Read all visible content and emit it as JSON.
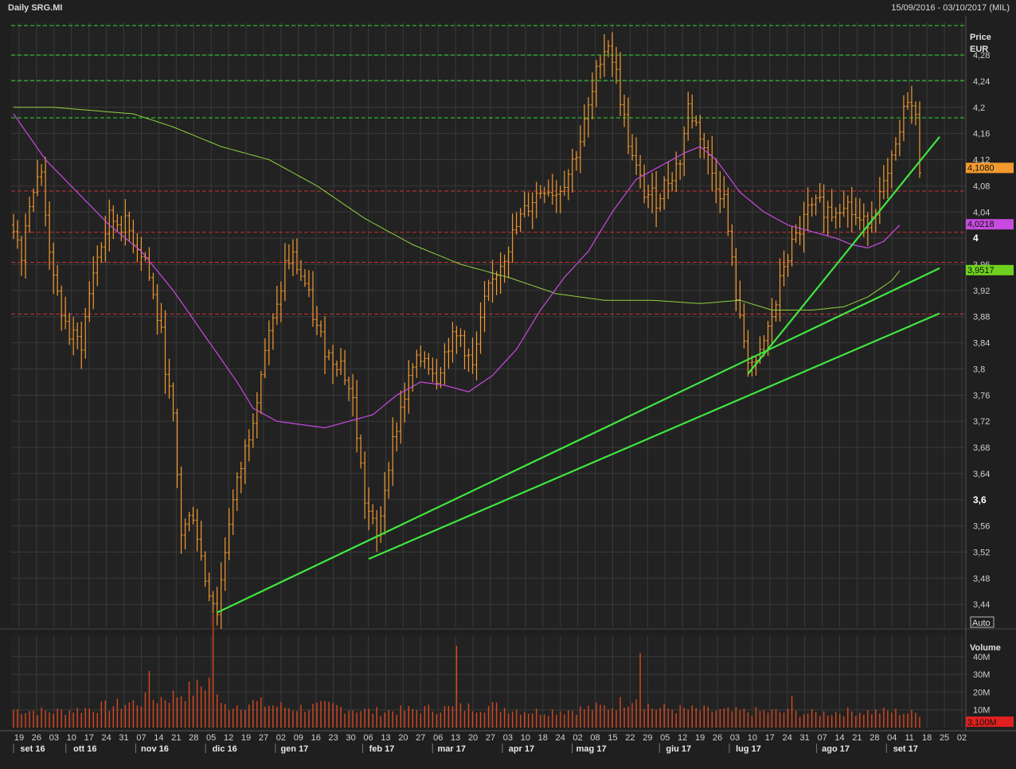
{
  "header": {
    "title": "Daily SRG.MI",
    "range": "15/09/2016 - 03/10/2017 (MIL)"
  },
  "colors": {
    "background": "#1f1f1f",
    "panel": "#222222",
    "grid": "#3a3a3a",
    "bars": "#f29a2e",
    "ma_short": "#c84be0",
    "ma_long": "#8fd13f",
    "trend": "#3fe63f",
    "green_dashed": "#2fd82f",
    "red_dashed": "#c83232",
    "volume": "#d9481e"
  },
  "chart_data": {
    "type": "ohlc",
    "price_axis": {
      "label_line1": "Price",
      "label_line2": "EUR",
      "ylim": [
        3.405,
        4.33
      ],
      "ticks": [
        "3,44",
        "3,48",
        "3,52",
        "3,56",
        "3,6",
        "3,64",
        "3,68",
        "3,72",
        "3,76",
        "3,8",
        "3,84",
        "3,88",
        "3,92",
        "3,96",
        "4",
        "4,04",
        "4,08",
        "4,12",
        "4,16",
        "4,2",
        "4,24",
        "4,28"
      ],
      "tick_values": [
        3.44,
        3.48,
        3.52,
        3.56,
        3.6,
        3.64,
        3.68,
        3.72,
        3.76,
        3.8,
        3.84,
        3.88,
        3.92,
        3.96,
        4.0,
        4.04,
        4.08,
        4.12,
        4.16,
        4.2,
        4.24,
        4.28
      ],
      "bold_ticks": [
        "3,6",
        "4"
      ],
      "auto_label": "Auto"
    },
    "volume_axis": {
      "label": "Volume",
      "ylim": [
        0,
        52
      ],
      "ticks": [
        "10M",
        "20M",
        "30M",
        "40M"
      ],
      "tick_values": [
        10,
        20,
        30,
        40
      ]
    },
    "x_day_labels": [
      "19",
      "26",
      "03",
      "10",
      "17",
      "24",
      "31",
      "07",
      "14",
      "21",
      "28",
      "05",
      "12",
      "19",
      "27",
      "02",
      "09",
      "16",
      "23",
      "30",
      "06",
      "13",
      "20",
      "27",
      "06",
      "13",
      "20",
      "27",
      "03",
      "10",
      "18",
      "24",
      "02",
      "08",
      "15",
      "22",
      "29",
      "05",
      "12",
      "19",
      "26",
      "03",
      "10",
      "17",
      "24",
      "31",
      "07",
      "14",
      "21",
      "28",
      "04",
      "11",
      "18",
      "25",
      "02"
    ],
    "x_month_labels": [
      {
        "label": "set 16",
        "day_index": 0
      },
      {
        "label": "ott 16",
        "day_index": 3
      },
      {
        "label": "nov 16",
        "day_index": 7
      },
      {
        "label": "dic 16",
        "day_index": 11
      },
      {
        "label": "gen 17",
        "day_index": 15
      },
      {
        "label": "feb 17",
        "day_index": 20
      },
      {
        "label": "mar 17",
        "day_index": 24
      },
      {
        "label": "apr 17",
        "day_index": 28
      },
      {
        "label": "mag 17",
        "day_index": 32
      },
      {
        "label": "giu 17",
        "day_index": 37
      },
      {
        "label": "lug 17",
        "day_index": 41
      },
      {
        "label": "ago 17",
        "day_index": 46
      },
      {
        "label": "set 17",
        "day_index": 50
      }
    ],
    "price_anchors": [
      [
        0,
        4.02
      ],
      [
        2,
        3.98
      ],
      [
        4,
        4.06
      ],
      [
        7,
        4.1
      ],
      [
        10,
        3.93
      ],
      [
        14,
        3.85
      ],
      [
        17,
        3.84
      ],
      [
        20,
        3.95
      ],
      [
        24,
        4.03
      ],
      [
        28,
        4.02
      ],
      [
        33,
        3.97
      ],
      [
        37,
        3.85
      ],
      [
        40,
        3.72
      ],
      [
        42,
        3.55
      ],
      [
        45,
        3.58
      ],
      [
        48,
        3.48
      ],
      [
        51,
        3.43
      ],
      [
        54,
        3.57
      ],
      [
        57,
        3.65
      ],
      [
        60,
        3.73
      ],
      [
        63,
        3.83
      ],
      [
        66,
        3.89
      ],
      [
        68,
        3.96
      ],
      [
        70,
        3.97
      ],
      [
        73,
        3.93
      ],
      [
        76,
        3.86
      ],
      [
        79,
        3.82
      ],
      [
        82,
        3.81
      ],
      [
        85,
        3.75
      ],
      [
        88,
        3.6
      ],
      [
        91,
        3.54
      ],
      [
        94,
        3.66
      ],
      [
        97,
        3.74
      ],
      [
        100,
        3.8
      ],
      [
        103,
        3.82
      ],
      [
        106,
        3.79
      ],
      [
        109,
        3.84
      ],
      [
        112,
        3.85
      ],
      [
        115,
        3.8
      ],
      [
        118,
        3.9
      ],
      [
        121,
        3.95
      ],
      [
        124,
        3.99
      ],
      [
        127,
        4.03
      ],
      [
        130,
        4.06
      ],
      [
        133,
        4.08
      ],
      [
        136,
        4.07
      ],
      [
        139,
        4.1
      ],
      [
        142,
        4.15
      ],
      [
        145,
        4.22
      ],
      [
        147,
        4.28
      ],
      [
        149,
        4.3
      ],
      [
        151,
        4.25
      ],
      [
        153,
        4.18
      ],
      [
        155,
        4.12
      ],
      [
        158,
        4.07
      ],
      [
        161,
        4.06
      ],
      [
        164,
        4.09
      ],
      [
        167,
        4.12
      ],
      [
        169,
        4.2
      ],
      [
        172,
        4.16
      ],
      [
        175,
        4.1
      ],
      [
        178,
        4.06
      ],
      [
        180,
        3.96
      ],
      [
        182,
        3.87
      ],
      [
        184,
        3.82
      ],
      [
        186,
        3.8
      ],
      [
        188,
        3.84
      ],
      [
        191,
        3.9
      ],
      [
        193,
        3.96
      ],
      [
        196,
        4.0
      ],
      [
        199,
        4.04
      ],
      [
        202,
        4.05
      ],
      [
        205,
        4.04
      ],
      [
        208,
        4.06
      ],
      [
        211,
        4.03
      ],
      [
        213,
        4.02
      ],
      [
        216,
        4.05
      ],
      [
        219,
        4.09
      ],
      [
        222,
        4.16
      ],
      [
        224,
        4.22
      ],
      [
        226,
        4.18
      ],
      [
        227,
        4.11
      ]
    ],
    "bars_count": 228,
    "ma_short_anchors": [
      [
        0,
        4.19
      ],
      [
        8,
        4.12
      ],
      [
        16,
        4.07
      ],
      [
        24,
        4.02
      ],
      [
        32,
        3.98
      ],
      [
        40,
        3.92
      ],
      [
        48,
        3.85
      ],
      [
        56,
        3.78
      ],
      [
        60,
        3.74
      ],
      [
        66,
        3.72
      ],
      [
        72,
        3.715
      ],
      [
        78,
        3.71
      ],
      [
        84,
        3.72
      ],
      [
        90,
        3.73
      ],
      [
        96,
        3.76
      ],
      [
        102,
        3.78
      ],
      [
        108,
        3.775
      ],
      [
        114,
        3.765
      ],
      [
        120,
        3.79
      ],
      [
        126,
        3.83
      ],
      [
        132,
        3.89
      ],
      [
        138,
        3.94
      ],
      [
        144,
        3.98
      ],
      [
        150,
        4.04
      ],
      [
        156,
        4.09
      ],
      [
        162,
        4.11
      ],
      [
        168,
        4.13
      ],
      [
        172,
        4.14
      ],
      [
        176,
        4.12
      ],
      [
        182,
        4.07
      ],
      [
        188,
        4.04
      ],
      [
        194,
        4.02
      ],
      [
        200,
        4.01
      ],
      [
        206,
        4.0
      ],
      [
        210,
        3.99
      ],
      [
        214,
        3.985
      ],
      [
        218,
        3.995
      ],
      [
        222,
        4.02
      ]
    ],
    "ma_long_anchors": [
      [
        0,
        4.2
      ],
      [
        10,
        4.2
      ],
      [
        20,
        4.195
      ],
      [
        30,
        4.19
      ],
      [
        40,
        4.17
      ],
      [
        52,
        4.14
      ],
      [
        64,
        4.12
      ],
      [
        76,
        4.08
      ],
      [
        88,
        4.03
      ],
      [
        100,
        3.99
      ],
      [
        112,
        3.96
      ],
      [
        124,
        3.94
      ],
      [
        136,
        3.915
      ],
      [
        148,
        3.905
      ],
      [
        160,
        3.905
      ],
      [
        172,
        3.9
      ],
      [
        182,
        3.905
      ],
      [
        190,
        3.89
      ],
      [
        200,
        3.89
      ],
      [
        208,
        3.895
      ],
      [
        214,
        3.91
      ],
      [
        220,
        3.935
      ],
      [
        222,
        3.95
      ]
    ],
    "volume_anchors": [
      [
        0,
        10
      ],
      [
        10,
        9
      ],
      [
        20,
        11
      ],
      [
        30,
        14
      ],
      [
        40,
        18
      ],
      [
        46,
        22
      ],
      [
        50,
        28
      ],
      [
        52,
        12
      ],
      [
        60,
        14
      ],
      [
        70,
        11
      ],
      [
        80,
        12
      ],
      [
        90,
        9
      ],
      [
        100,
        10
      ],
      [
        110,
        11
      ],
      [
        120,
        12
      ],
      [
        130,
        9
      ],
      [
        140,
        10
      ],
      [
        150,
        12
      ],
      [
        156,
        18
      ],
      [
        160,
        11
      ],
      [
        170,
        10
      ],
      [
        180,
        9
      ],
      [
        190,
        9
      ],
      [
        200,
        8
      ],
      [
        210,
        9
      ],
      [
        220,
        9
      ],
      [
        226,
        8
      ]
    ],
    "volume_spikes": [
      [
        34,
        32
      ],
      [
        50,
        64
      ],
      [
        111,
        46
      ],
      [
        157,
        42
      ],
      [
        195,
        18
      ]
    ],
    "horizontal_levels": {
      "green_dashed": [
        4.325,
        4.28,
        4.241,
        4.184
      ],
      "red_dashed": [
        4.072,
        4.009,
        3.963,
        3.884
      ]
    },
    "trend_lines": [
      {
        "x1": 51,
        "y1": 3.4275,
        "x2": 232,
        "y2": 3.954
      },
      {
        "x1": 89,
        "y1": 3.5095,
        "x2": 232,
        "y2": 3.885
      },
      {
        "x1": 184,
        "y1": 3.7925,
        "x2": 232,
        "y2": 4.155
      }
    ],
    "last_values": [
      {
        "label": "4,1080",
        "value": 4.108,
        "color": "#f29a2e"
      },
      {
        "label": "4,0218",
        "value": 4.0218,
        "color": "#c84be0"
      },
      {
        "label": "3,9517",
        "value": 3.9517,
        "color": "#6fd11f"
      }
    ],
    "volume_last": {
      "label": "3,100M",
      "value": 3.1
    }
  }
}
